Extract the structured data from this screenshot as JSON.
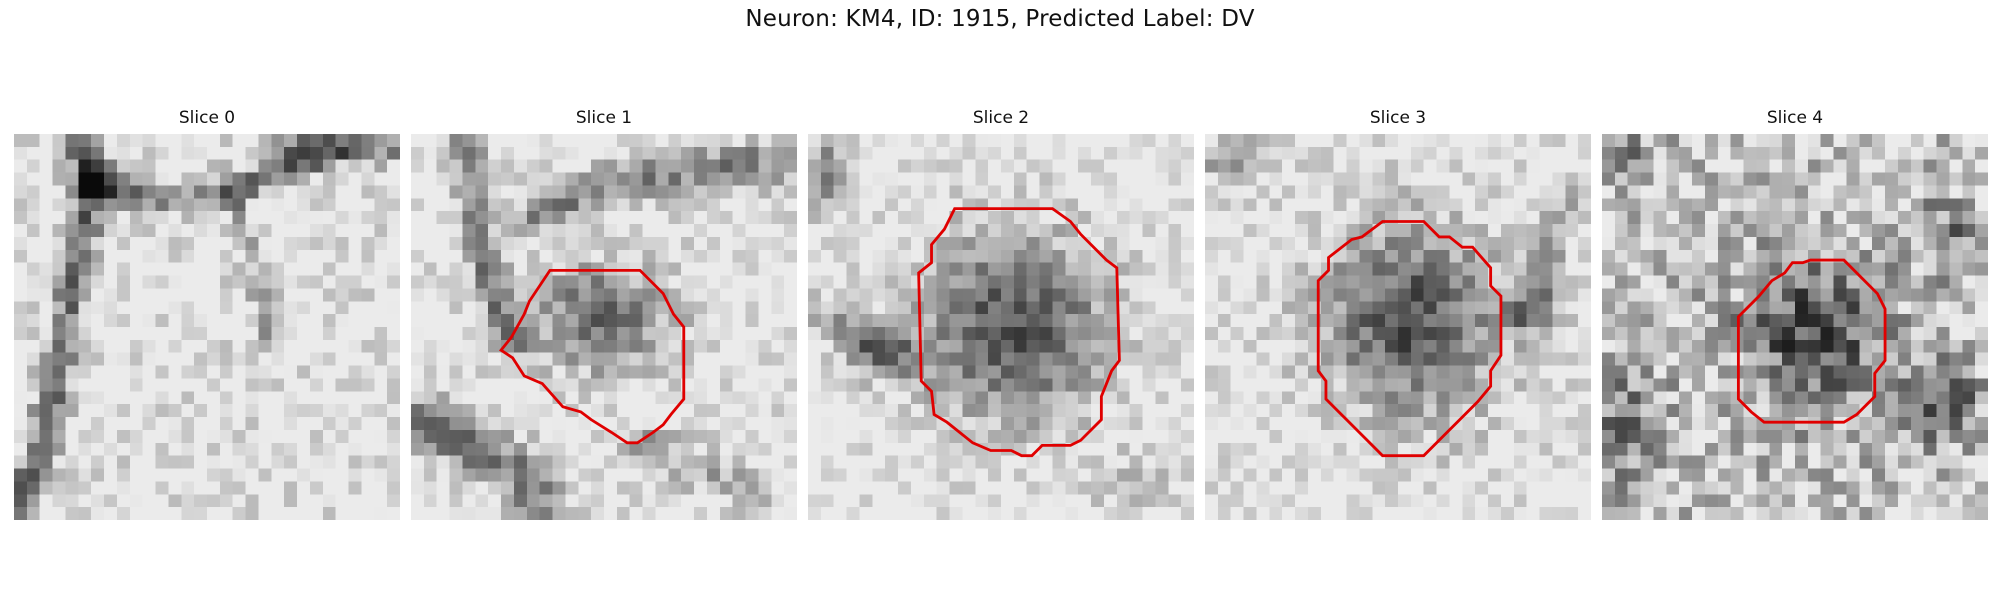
{
  "figure": {
    "title": "Neuron: KM4, ID: 1915, Predicted Label: DV"
  },
  "colors": {
    "contour": "#e00000",
    "background": "#ffffff"
  },
  "panels": [
    {
      "title": "Slice 0",
      "has_contour": false
    },
    {
      "title": "Slice 1",
      "has_contour": true
    },
    {
      "title": "Slice 2",
      "has_contour": true
    },
    {
      "title": "Slice 3",
      "has_contour": true
    },
    {
      "title": "Slice 4",
      "has_contour": true
    }
  ]
}
